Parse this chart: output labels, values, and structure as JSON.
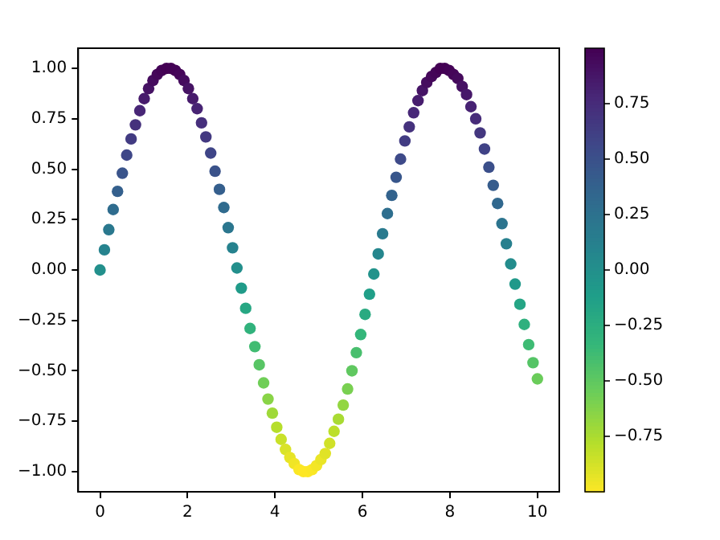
{
  "chart_data": {
    "type": "scatter",
    "x": [
      0,
      0.1,
      0.2,
      0.3,
      0.4,
      0.51,
      0.61,
      0.71,
      0.81,
      0.91,
      1.01,
      1.11,
      1.21,
      1.31,
      1.41,
      1.52,
      1.62,
      1.72,
      1.82,
      1.92,
      2.02,
      2.12,
      2.22,
      2.32,
      2.42,
      2.53,
      2.63,
      2.73,
      2.83,
      2.93,
      3.03,
      3.13,
      3.23,
      3.33,
      3.43,
      3.54,
      3.64,
      3.74,
      3.84,
      3.94,
      4.04,
      4.14,
      4.24,
      4.34,
      4.44,
      4.55,
      4.65,
      4.75,
      4.85,
      4.95,
      5.05,
      5.15,
      5.25,
      5.35,
      5.45,
      5.56,
      5.66,
      5.76,
      5.86,
      5.96,
      6.06,
      6.16,
      6.26,
      6.36,
      6.46,
      6.57,
      6.67,
      6.77,
      6.87,
      6.97,
      7.07,
      7.17,
      7.27,
      7.37,
      7.47,
      7.58,
      7.68,
      7.78,
      7.88,
      7.98,
      8.08,
      8.18,
      8.28,
      8.38,
      8.48,
      8.59,
      8.69,
      8.79,
      8.89,
      8.99,
      9.09,
      9.19,
      9.29,
      9.39,
      9.49,
      9.6,
      9.7,
      9.8,
      9.9,
      10
    ],
    "values": [
      0,
      0.1,
      0.2,
      0.3,
      0.39,
      0.48,
      0.57,
      0.65,
      0.72,
      0.79,
      0.85,
      0.9,
      0.94,
      0.97,
      0.99,
      1,
      1,
      0.99,
      0.97,
      0.94,
      0.9,
      0.85,
      0.8,
      0.73,
      0.66,
      0.58,
      0.49,
      0.4,
      0.31,
      0.21,
      0.11,
      0.01,
      -0.09,
      -0.19,
      -0.29,
      -0.38,
      -0.47,
      -0.56,
      -0.64,
      -0.71,
      -0.78,
      -0.84,
      -0.89,
      -0.93,
      -0.96,
      -0.99,
      -1,
      -1,
      -0.99,
      -0.97,
      -0.94,
      -0.91,
      -0.86,
      -0.8,
      -0.74,
      -0.67,
      -0.59,
      -0.5,
      -0.41,
      -0.32,
      -0.22,
      -0.12,
      -0.02,
      0.08,
      0.18,
      0.28,
      0.37,
      0.46,
      0.55,
      0.64,
      0.71,
      0.78,
      0.84,
      0.89,
      0.93,
      0.96,
      0.98,
      1,
      1,
      0.99,
      0.97,
      0.95,
      0.91,
      0.87,
      0.81,
      0.75,
      0.68,
      0.6,
      0.51,
      0.42,
      0.33,
      0.23,
      0.13,
      0.03,
      -0.07,
      -0.17,
      -0.27,
      -0.37,
      -0.46,
      -0.54
    ],
    "cvalues": [
      0,
      0.1,
      0.2,
      0.3,
      0.39,
      0.48,
      0.57,
      0.65,
      0.72,
      0.79,
      0.85,
      0.9,
      0.94,
      0.97,
      0.99,
      1,
      1,
      0.99,
      0.97,
      0.94,
      0.9,
      0.85,
      0.8,
      0.73,
      0.66,
      0.58,
      0.49,
      0.4,
      0.31,
      0.21,
      0.11,
      0.01,
      -0.09,
      -0.19,
      -0.29,
      -0.38,
      -0.47,
      -0.56,
      -0.64,
      -0.71,
      -0.78,
      -0.84,
      -0.89,
      -0.93,
      -0.96,
      -0.99,
      -1,
      -1,
      -0.99,
      -0.97,
      -0.94,
      -0.91,
      -0.86,
      -0.8,
      -0.74,
      -0.67,
      -0.59,
      -0.5,
      -0.41,
      -0.32,
      -0.22,
      -0.12,
      -0.02,
      0.08,
      0.18,
      0.28,
      0.37,
      0.46,
      0.55,
      0.64,
      0.71,
      0.78,
      0.84,
      0.89,
      0.93,
      0.96,
      0.98,
      1,
      1,
      0.99,
      0.97,
      0.95,
      0.91,
      0.87,
      0.81,
      0.75,
      0.68,
      0.6,
      0.51,
      0.42,
      0.33,
      0.23,
      0.13,
      0.03,
      -0.07,
      -0.17,
      -0.27,
      -0.37,
      -0.46,
      -0.54
    ],
    "xlim": [
      -0.5,
      10.5
    ],
    "xticks": [
      0,
      2,
      4,
      6,
      8,
      10
    ],
    "ylim": [
      -1.1,
      1.1
    ],
    "yticks": [
      {
        "value": -1,
        "label": "−1.00"
      },
      {
        "value": -0.75,
        "label": "−0.75"
      },
      {
        "value": -0.5,
        "label": "−0.50"
      },
      {
        "value": -0.25,
        "label": "−0.25"
      },
      {
        "value": 0,
        "label": "0.00"
      },
      {
        "value": 0.25,
        "label": "0.25"
      },
      {
        "value": 0.5,
        "label": "0.50"
      },
      {
        "value": 0.75,
        "label": "0.75"
      },
      {
        "value": 1,
        "label": "1.00"
      }
    ],
    "clim": [
      -1,
      1
    ],
    "cticks": [
      {
        "value": -0.75,
        "label": "−0.75"
      },
      {
        "value": -0.5,
        "label": "−0.50"
      },
      {
        "value": -0.25,
        "label": "−0.25"
      },
      {
        "value": 0,
        "label": "0.00"
      },
      {
        "value": 0.25,
        "label": "0.25"
      },
      {
        "value": 0.5,
        "label": "0.50"
      },
      {
        "value": 0.75,
        "label": "0.75"
      }
    ],
    "grid": false,
    "legend": false,
    "marker": "circle"
  }
}
